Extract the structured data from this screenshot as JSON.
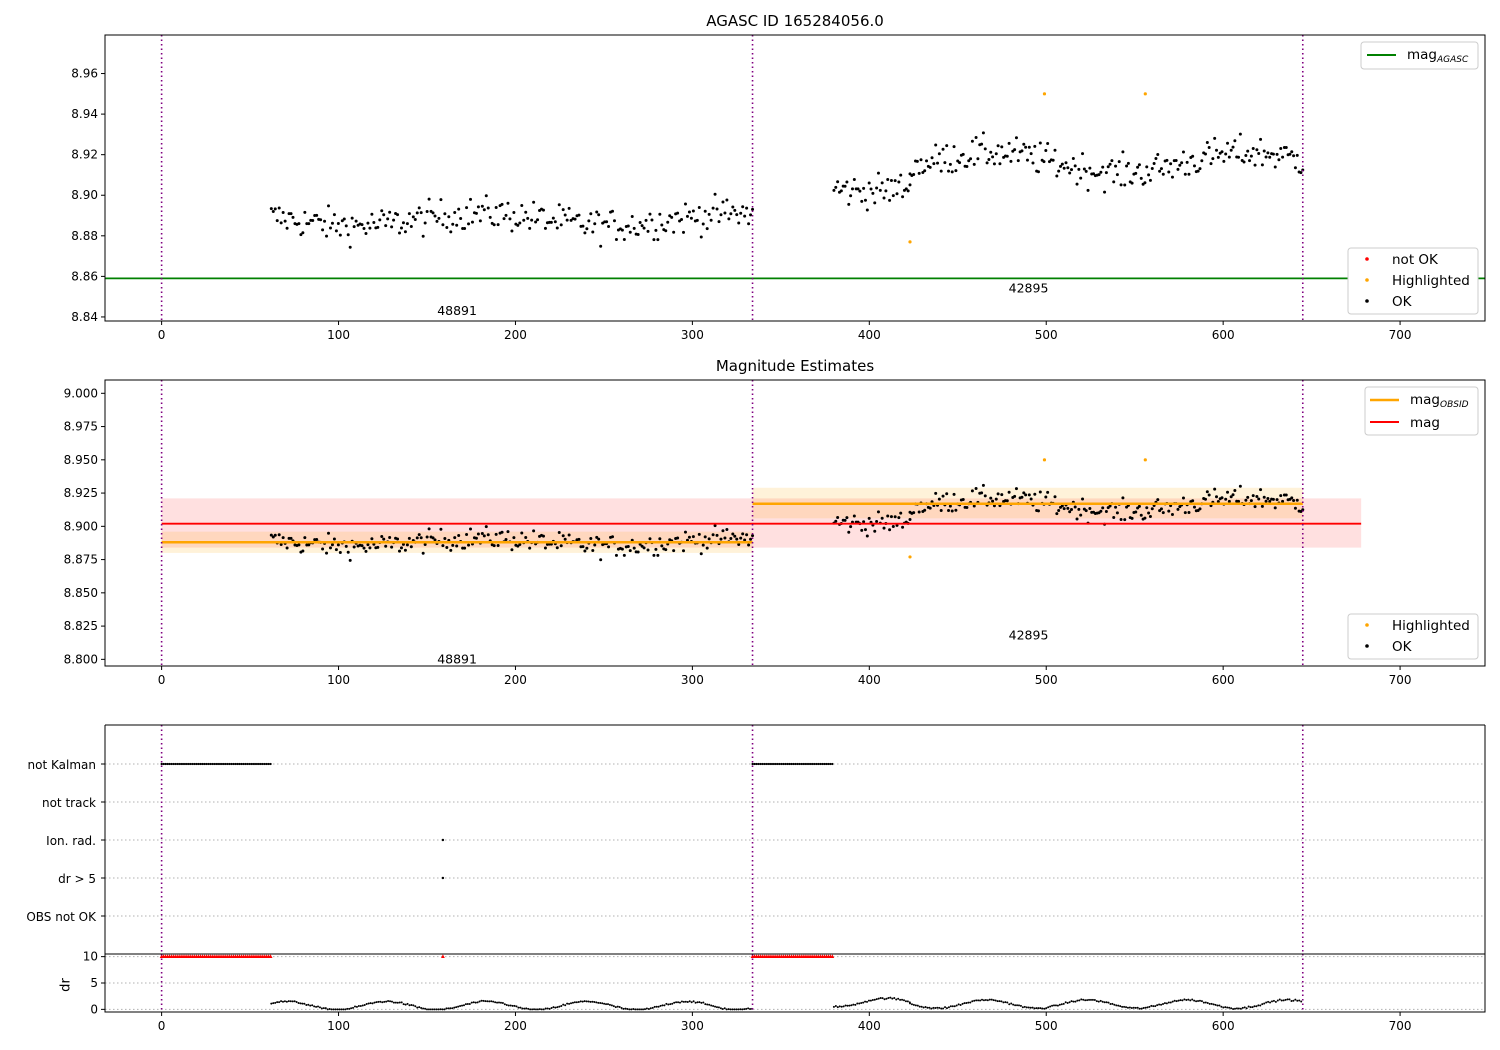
{
  "chart_data": [
    {
      "type": "scatter",
      "title": "AGASC ID 165284056.0",
      "xlim": [
        -32,
        748
      ],
      "ylim": [
        8.838,
        8.979
      ],
      "xticks": [
        0,
        100,
        200,
        300,
        400,
        500,
        600,
        700
      ],
      "yticks": [
        8.84,
        8.86,
        8.88,
        8.9,
        8.92,
        8.94,
        8.96
      ],
      "obs_boundaries": [
        0,
        334,
        645
      ],
      "mag_agasc": 8.859,
      "obsid_labels": [
        {
          "text": "48891",
          "x": 167,
          "y": 8.843
        },
        {
          "text": "42895",
          "x": 490,
          "y": 8.854
        }
      ],
      "series": [
        {
          "name": "not OK",
          "color": "#ff0000",
          "points": []
        },
        {
          "name": "Highlighted",
          "color": "#ffa500",
          "points": [
            [
              423,
              8.877
            ],
            [
              499,
              8.95
            ],
            [
              556,
              8.95
            ]
          ]
        },
        {
          "name": "OK",
          "color": "#000000",
          "segments": [
            {
              "x0": 62,
              "x1": 334,
              "n": 245,
              "base": 8.888,
              "amp": 0.006,
              "noise": 0.008
            },
            {
              "x0": 380,
              "x1": 423,
              "n": 42,
              "base": 8.906,
              "amp": 0.008,
              "noise": 0.008
            },
            {
              "x0": 423,
              "x1": 645,
              "n": 215,
              "base": 8.916,
              "amp": 0.01,
              "noise": 0.008
            }
          ]
        }
      ],
      "legend": [
        {
          "label": "mag",
          "sub": "AGASC",
          "color": "#008000",
          "kind": "line"
        },
        {
          "label": "not OK",
          "color": "#ff0000",
          "kind": "dot"
        },
        {
          "label": "Highlighted",
          "color": "#ffa500",
          "kind": "dot"
        },
        {
          "label": "OK",
          "color": "#000000",
          "kind": "dot"
        }
      ]
    },
    {
      "type": "scatter",
      "title": "Magnitude Estimates",
      "xlim": [
        -32,
        748
      ],
      "ylim": [
        8.795,
        9.01
      ],
      "xticks": [
        0,
        100,
        200,
        300,
        400,
        500,
        600,
        700
      ],
      "yticks": [
        8.8,
        8.825,
        8.85,
        8.875,
        8.9,
        8.925,
        8.95,
        8.975,
        9.0
      ],
      "obs_boundaries": [
        0,
        334,
        645
      ],
      "mag": {
        "value": 8.902,
        "low": 8.884,
        "high": 8.921,
        "x0": 0,
        "x1": 678
      },
      "mag_obsid": [
        {
          "x0": 0,
          "x1": 334,
          "value": 8.888,
          "low": 8.88,
          "high": 8.896
        },
        {
          "x0": 334,
          "x1": 645,
          "value": 8.917,
          "low": 8.906,
          "high": 8.929
        }
      ],
      "obsid_labels": [
        {
          "text": "48891",
          "x": 167,
          "y": 8.8
        },
        {
          "text": "42895",
          "x": 490,
          "y": 8.818
        }
      ],
      "legend": [
        {
          "label": "mag",
          "sub": "OBSID",
          "color": "#ffa500",
          "kind": "line"
        },
        {
          "label": "mag",
          "color": "#ff0000",
          "kind": "line"
        },
        {
          "label": "Highlighted",
          "color": "#ffa500",
          "kind": "dot"
        },
        {
          "label": "OK",
          "color": "#000000",
          "kind": "dot"
        }
      ]
    },
    {
      "type": "scatter",
      "title": "",
      "xlim": [
        -32,
        748
      ],
      "categories": [
        "not Kalman",
        "not track",
        "Ion. rad.",
        "dr > 5",
        "OBS not OK"
      ],
      "flag_points": [
        {
          "category": "not Kalman",
          "ranges": [
            [
              0,
              62
            ],
            [
              334,
              380
            ]
          ]
        },
        {
          "category": "Ion. rad.",
          "points": [
            159
          ]
        },
        {
          "category": "dr > 5",
          "points": [
            159
          ]
        }
      ],
      "obs_boundaries": [
        0,
        334,
        645
      ]
    },
    {
      "type": "line",
      "title": "",
      "xlim": [
        -32,
        748
      ],
      "ylim": [
        -0.5,
        10.5
      ],
      "ylabel": "dr",
      "yticks": [
        0,
        5,
        10
      ],
      "xticks": [
        0,
        100,
        200,
        300,
        400,
        500,
        600,
        700
      ],
      "capped": {
        "value": 10,
        "color": "#ff0000",
        "ranges": [
          [
            0,
            62
          ],
          [
            334,
            380
          ]
        ],
        "points": [
          159
        ]
      },
      "obs_boundaries": [
        0,
        334,
        645
      ]
    }
  ]
}
